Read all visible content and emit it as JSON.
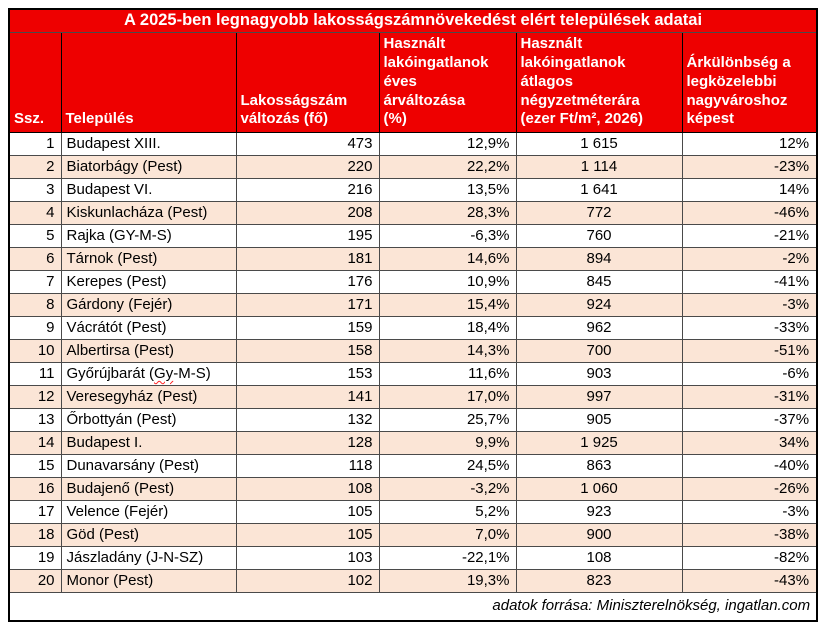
{
  "chart_data": {
    "type": "table",
    "title": "A 2025-ben legnagyobb lakosságszámnövekedést elért települések adatai",
    "columns": [
      "Ssz.",
      "Település",
      "Lakosságszám\nváltozás (fő)",
      "Használt\nlakóingatlanok\néves\nárváltozása\n(%)",
      "Használt\nlakóingatlanok\nátlagos\nnégyzetméterára\n(ezer Ft/m², 2026)",
      "Árkülönbség a\nlegközelebbi\nnagyvároshoz\nképest"
    ],
    "rows": [
      [
        "1",
        "Budapest XIII.",
        "473",
        "12,9%",
        "1 615",
        "12%"
      ],
      [
        "2",
        "Biatorbágy (Pest)",
        "220",
        "22,2%",
        "1 114",
        "-23%"
      ],
      [
        "3",
        "Budapest VI.",
        "216",
        "13,5%",
        "1 641",
        "14%"
      ],
      [
        "4",
        "Kiskunlacháza (Pest)",
        "208",
        "28,3%",
        "772",
        "-46%"
      ],
      [
        "5",
        "Rajka (GY-M-S)",
        "195",
        "-6,3%",
        "760",
        "-21%"
      ],
      [
        "6",
        "Tárnok (Pest)",
        "181",
        "14,6%",
        "894",
        "-2%"
      ],
      [
        "7",
        "Kerepes (Pest)",
        "176",
        "10,9%",
        "845",
        "-41%"
      ],
      [
        "8",
        "Gárdony (Fejér)",
        "171",
        "15,4%",
        "924",
        "-3%"
      ],
      [
        "9",
        "Vácrátót (Pest)",
        "159",
        "18,4%",
        "962",
        "-33%"
      ],
      [
        "10",
        "Albertirsa (Pest)",
        "158",
        "14,3%",
        "700",
        "-51%"
      ],
      [
        "11",
        "Győrújbarát (Gy-M-S)",
        "153",
        "11,6%",
        "903",
        "-6%"
      ],
      [
        "12",
        "Veresegyház (Pest)",
        "141",
        "17,0%",
        "997",
        "-31%"
      ],
      [
        "13",
        "Őrbottyán (Pest)",
        "132",
        "25,7%",
        "905",
        "-37%"
      ],
      [
        "14",
        "Budapest I.",
        "128",
        "9,9%",
        "1 925",
        "34%"
      ],
      [
        "15",
        "Dunavarsány (Pest)",
        "118",
        "24,5%",
        "863",
        "-40%"
      ],
      [
        "16",
        "Budajenő (Pest)",
        "108",
        "-3,2%",
        "1 060",
        "-26%"
      ],
      [
        "17",
        "Velence (Fejér)",
        "105",
        "5,2%",
        "923",
        "-3%"
      ],
      [
        "18",
        "Göd (Pest)",
        "105",
        "7,0%",
        "900",
        "-38%"
      ],
      [
        "19",
        "Jászladány (J-N-SZ)",
        "103",
        "-22,1%",
        "108",
        "-82%"
      ],
      [
        "20",
        "Monor (Pest)",
        "102",
        "19,3%",
        "823",
        "-43%"
      ]
    ],
    "footer": "adatok forrása: Miniszterelnökség, ingatlan.com",
    "layout_hints": {
      "grid": "on",
      "alternating_row_fill": "even rows shaded",
      "column_alignments": [
        "right",
        "left",
        "right",
        "right",
        "center",
        "right"
      ]
    }
  },
  "spellcheck": {
    "row_number": "11",
    "prefix": "Győrújbarát (",
    "marked": "Gy",
    "suffix": "-M-S)"
  },
  "colors": {
    "header_background": "#ee0000",
    "header_text": "#ffffff",
    "alt_row_background": "#fbe5d6",
    "base_row_background": "#ffffff",
    "body_text": "#000000",
    "spellcheck_underline": "#ff2020"
  }
}
